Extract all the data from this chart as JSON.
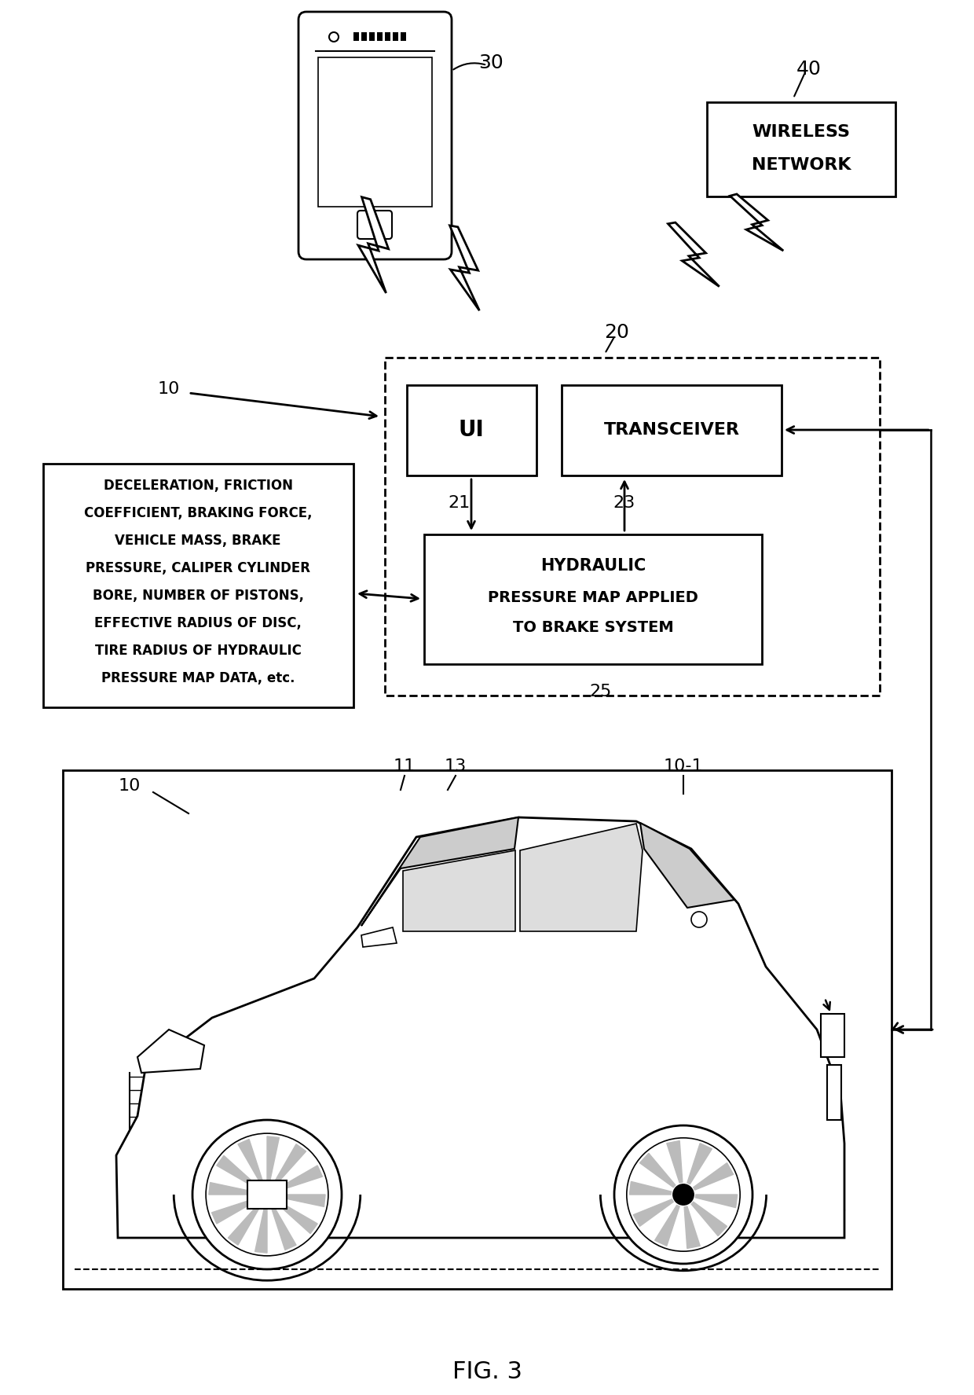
{
  "title": "FIG. 3",
  "bg": "#ffffff",
  "lc": "#000000",
  "phone_label": "30",
  "wn_label": "40",
  "sys_label": "20",
  "ui_text": "UI",
  "tr_text": "TRANSCEIVER",
  "ul21": "21",
  "ul23": "23",
  "ul25": "25",
  "ul10": "10",
  "ul10_car": "10",
  "ul11": "11",
  "ul13": "13",
  "ul10_1": "10-1",
  "hydr_lines": [
    "HYDRAULIC",
    "PRESSURE MAP APPLIED",
    "TO BRAKE SYSTEM"
  ],
  "wn_lines": [
    "WIRELESS",
    "NETWORK"
  ],
  "data_lines": [
    "DECELERATION, FRICTION",
    "COEFFICIENT, BRAKING FORCE,",
    "VEHICLE MASS, BRAKE",
    "PRESSURE, CALIPER CYLINDER",
    "BORE, NUMBER OF PISTONS,",
    "EFFECTIVE RADIUS OF DISC,",
    "TIRE RADIUS OF HYDRAULIC",
    "PRESSURE MAP DATA, etc."
  ],
  "fig_label": "FIG. 3"
}
